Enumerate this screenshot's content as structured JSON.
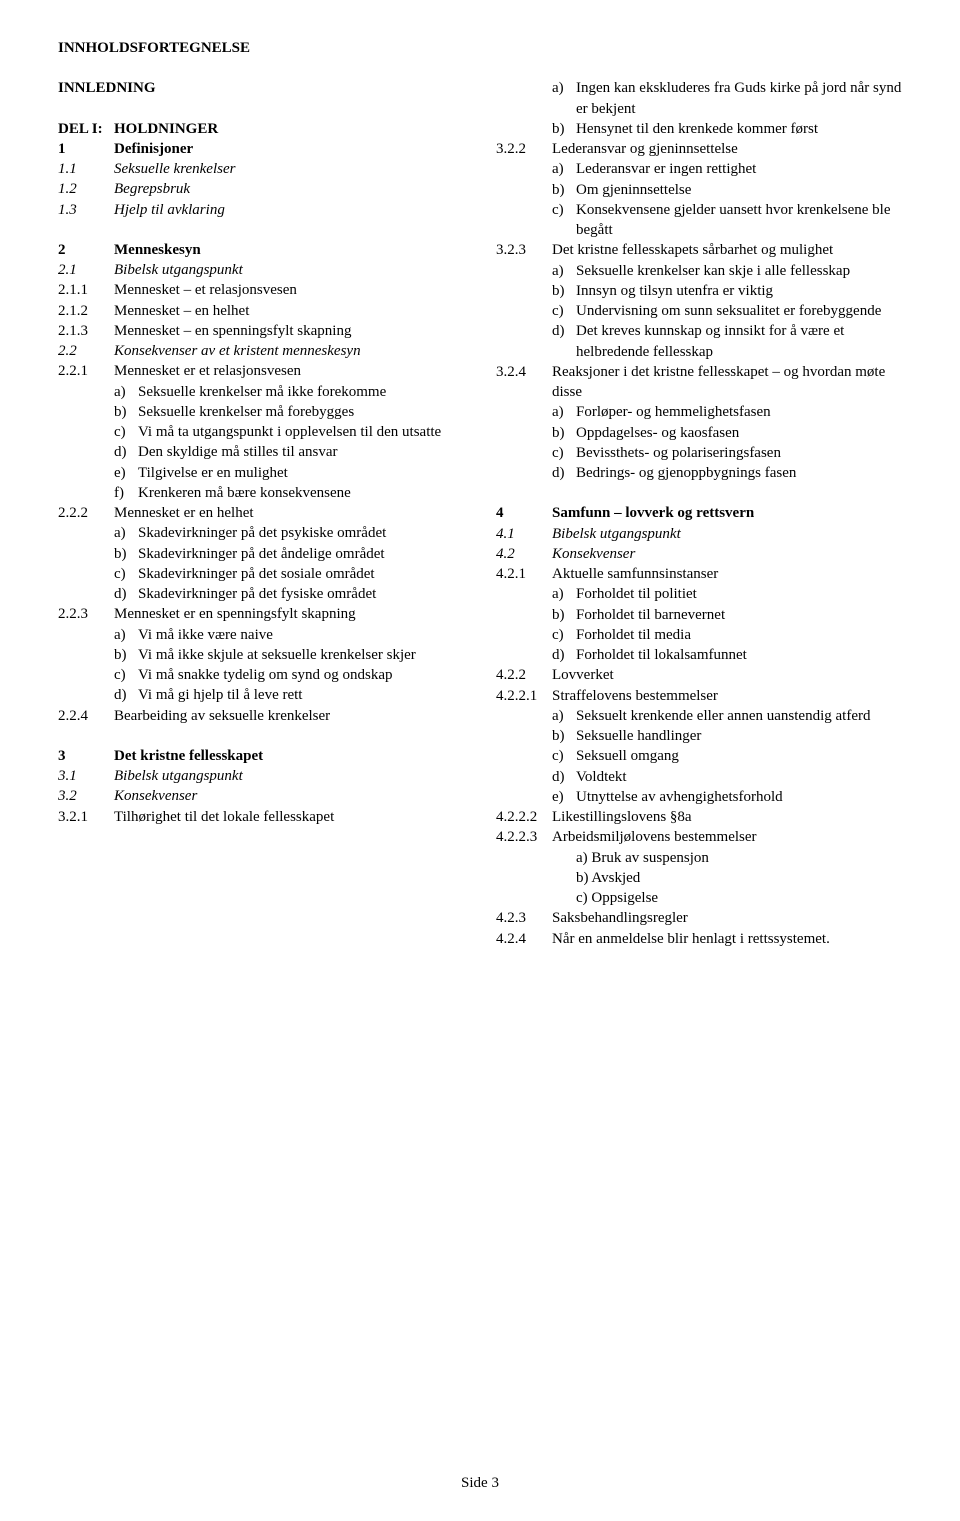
{
  "pageTitle": "INNHOLDSFORTEGNELSE",
  "intro": "INNLEDNING",
  "left": [
    {
      "type": "row",
      "bold": true,
      "num": "DEL I:",
      "txt": "HOLDNINGER"
    },
    {
      "type": "row",
      "bold": true,
      "num": "1",
      "txt": "Definisjoner"
    },
    {
      "type": "row",
      "italic": true,
      "num": "1.1",
      "txt": "Seksuelle krenkelser"
    },
    {
      "type": "row",
      "italic": true,
      "num": "1.2",
      "txt": "Begrepsbruk"
    },
    {
      "type": "row",
      "italic": true,
      "num": "1.3",
      "txt": "Hjelp til avklaring"
    },
    {
      "type": "gap"
    },
    {
      "type": "row",
      "bold": true,
      "num": "2",
      "txt": "Menneskesyn"
    },
    {
      "type": "row",
      "italic": true,
      "num": "2.1",
      "txt": "Bibelsk utgangspunkt"
    },
    {
      "type": "row",
      "num": "2.1.1",
      "txt": "Mennesket – et relasjonsvesen"
    },
    {
      "type": "row",
      "num": "2.1.2",
      "txt": "Mennesket – en helhet"
    },
    {
      "type": "row",
      "num": "2.1.3",
      "txt": "Mennesket – en spenningsfylt skapning"
    },
    {
      "type": "row",
      "italic": true,
      "num": "2.2",
      "txt": "Konsekvenser av et kristent menneskesyn"
    },
    {
      "type": "row",
      "num": "2.2.1",
      "txt": "Mennesket er et relasjonsvesen"
    },
    {
      "type": "sub",
      "let": "a)",
      "txt": "Seksuelle krenkelser må ikke forekomme"
    },
    {
      "type": "sub",
      "let": "b)",
      "txt": "Seksuelle krenkelser må forebygges"
    },
    {
      "type": "sub",
      "let": "c)",
      "txt": "Vi må ta utgangspunkt i opplevelsen til den utsatte"
    },
    {
      "type": "sub",
      "let": "d)",
      "txt": "Den skyldige må stilles til ansvar"
    },
    {
      "type": "sub",
      "let": "e)",
      "txt": "Tilgivelse er en mulighet"
    },
    {
      "type": "sub",
      "let": "f)",
      "txt": "Krenkeren må bære konsekvensene"
    },
    {
      "type": "row",
      "num": "2.2.2",
      "txt": "Mennesket er en helhet"
    },
    {
      "type": "sub",
      "let": "a)",
      "txt": "Skadevirkninger på det psykiske området"
    },
    {
      "type": "sub",
      "let": "b)",
      "txt": "Skadevirkninger på det åndelige området"
    },
    {
      "type": "sub",
      "let": "c)",
      "txt": "Skadevirkninger på det sosiale området"
    },
    {
      "type": "sub",
      "let": "d)",
      "txt": "Skadevirkninger på det fysiske området"
    },
    {
      "type": "row",
      "num": "2.2.3",
      "txt": "Mennesket er en spenningsfylt skapning"
    },
    {
      "type": "sub",
      "let": "a)",
      "txt": "Vi må ikke være naive"
    },
    {
      "type": "sub",
      "let": "b)",
      "txt": "Vi må ikke skjule at seksuelle krenkelser skjer"
    },
    {
      "type": "sub",
      "let": "c)",
      "txt": "Vi må snakke tydelig om synd og ondskap"
    },
    {
      "type": "sub",
      "let": "d)",
      "txt": "Vi må gi hjelp til å leve rett"
    },
    {
      "type": "row",
      "num": "2.2.4",
      "txt": "Bearbeiding av seksuelle krenkelser"
    },
    {
      "type": "gap"
    },
    {
      "type": "row",
      "bold": true,
      "num": "3",
      "txt": "Det kristne fellesskapet"
    },
    {
      "type": "row",
      "italic": true,
      "num": "3.1",
      "txt": "Bibelsk utgangspunkt"
    },
    {
      "type": "row",
      "italic": true,
      "num": "3.2",
      "txt": "Konsekvenser"
    },
    {
      "type": "row",
      "num": "3.2.1",
      "txt": "Tilhørighet til det lokale fellesskapet"
    }
  ],
  "right": [
    {
      "type": "sub",
      "let": "a)",
      "txt": "Ingen kan ekskluderes fra Guds kirke på jord når synd er bekjent"
    },
    {
      "type": "sub",
      "let": "b)",
      "txt": "Hensynet til den krenkede kommer først"
    },
    {
      "type": "row",
      "num": "3.2.2",
      "txt": "Lederansvar og gjeninnsettelse"
    },
    {
      "type": "sub",
      "let": "a)",
      "txt": "Lederansvar er ingen rettighet"
    },
    {
      "type": "sub",
      "let": "b)",
      "txt": "Om gjeninnsettelse"
    },
    {
      "type": "sub",
      "let": "c)",
      "txt": "Konsekvensene gjelder uansett hvor krenkelsene ble begått"
    },
    {
      "type": "row",
      "num": "3.2.3",
      "txt": "Det kristne fellesskapets sårbarhet og mulighet"
    },
    {
      "type": "sub",
      "let": "a)",
      "txt": "Seksuelle krenkelser kan skje i alle fellesskap"
    },
    {
      "type": "sub",
      "let": "b)",
      "txt": "Innsyn og tilsyn utenfra er viktig"
    },
    {
      "type": "sub",
      "let": "c)",
      "txt": "Undervisning om sunn seksualitet er forebyggende"
    },
    {
      "type": "sub",
      "let": "d)",
      "txt": "Det kreves kunnskap og innsikt for å være et helbredende fellesskap"
    },
    {
      "type": "row",
      "num": "3.2.4",
      "txt": "Reaksjoner i det kristne fellesskapet – og hvordan møte disse"
    },
    {
      "type": "sub",
      "let": "a)",
      "txt": "Forløper- og hemmelighetsfasen"
    },
    {
      "type": "sub",
      "let": "b)",
      "txt": "Oppdagelses- og kaosfasen"
    },
    {
      "type": "sub",
      "let": "c)",
      "txt": "Bevissthets- og polariseringsfasen"
    },
    {
      "type": "sub",
      "let": "d)",
      "txt": "Bedrings- og gjenoppbygnings fasen"
    },
    {
      "type": "gap"
    },
    {
      "type": "row",
      "bold": true,
      "num": "4",
      "txt": "Samfunn – lovverk og rettsvern"
    },
    {
      "type": "row",
      "italic": true,
      "num": "4.1",
      "txt": "Bibelsk utgangspunkt"
    },
    {
      "type": "row",
      "italic": true,
      "num": "4.2",
      "txt": "Konsekvenser"
    },
    {
      "type": "row",
      "num": "4.2.1",
      "txt": "Aktuelle samfunnsinstanser"
    },
    {
      "type": "sub",
      "let": "a)",
      "txt": "Forholdet til politiet"
    },
    {
      "type": "sub",
      "let": "b)",
      "txt": "Forholdet til barnevernet"
    },
    {
      "type": "sub",
      "let": "c)",
      "txt": "Forholdet til media"
    },
    {
      "type": "sub",
      "let": "d)",
      "txt": "Forholdet til lokalsamfunnet"
    },
    {
      "type": "row",
      "num": "4.2.2",
      "txt": "Lovverket"
    },
    {
      "type": "row",
      "num": "4.2.2.1",
      "txt": "Straffelovens bestemmelser"
    },
    {
      "type": "sub",
      "let": "a)",
      "txt": "Seksuelt krenkende eller annen uanstendig atferd"
    },
    {
      "type": "sub",
      "let": "b)",
      "txt": "Seksuelle handlinger"
    },
    {
      "type": "sub",
      "let": "c)",
      "txt": "Seksuell omgang"
    },
    {
      "type": "sub",
      "let": "d)",
      "txt": "Voldtekt"
    },
    {
      "type": "sub",
      "let": "e)",
      "txt": "Utnyttelse av avhengighetsforhold"
    },
    {
      "type": "row",
      "num": "4.2.2.2",
      "txt": "Likestillingslovens §8a"
    },
    {
      "type": "row",
      "num": "4.2.2.3",
      "txt": "Arbeidsmiljølovens bestemmelser"
    },
    {
      "type": "sub",
      "let": "",
      "txt": "a) Bruk av suspensjon"
    },
    {
      "type": "sub",
      "let": "",
      "txt": "b) Avskjed"
    },
    {
      "type": "sub",
      "let": "",
      "txt": "c) Oppsigelse"
    },
    {
      "type": "row",
      "num": "4.2.3",
      "txt": "Saksbehandlingsregler"
    },
    {
      "type": "row",
      "num": "4.2.4",
      "txt": "Når en anmeldelse blir henlagt i rettssystemet."
    }
  ],
  "footer": "Side 3"
}
